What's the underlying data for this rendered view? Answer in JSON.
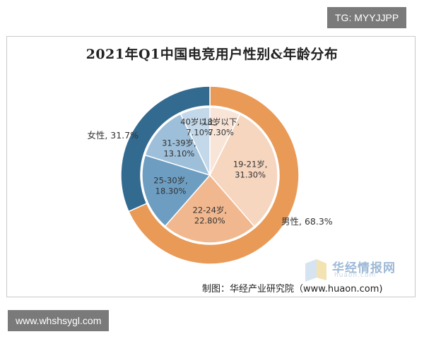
{
  "chart_data": {
    "type": "pie",
    "title": "2021年Q1中国电竞用户性别&年龄分布",
    "outer_ring": {
      "slices": [
        {
          "label": "女性",
          "value": 31.7,
          "text": "女性, 31.7%",
          "color": "#336a90"
        },
        {
          "label": "男性",
          "value": 68.3,
          "text": "男性, 68.3%",
          "color": "#e99a57"
        }
      ]
    },
    "inner_pie": {
      "slices": [
        {
          "label": "18岁以下",
          "value": 7.3,
          "text_label": "18岁以下,",
          "text_value": "7.30%",
          "color": "#f9e5d7"
        },
        {
          "label": "19-21岁",
          "value": 31.3,
          "text_label": "19-21岁,",
          "text_value": "31.30%",
          "color": "#f6d6bf"
        },
        {
          "label": "22-24岁",
          "value": 22.8,
          "text_label": "22-24岁,",
          "text_value": "22.80%",
          "color": "#f1b88f"
        },
        {
          "label": "25-30岁",
          "value": 18.3,
          "text_label": "25-30岁,",
          "text_value": "18.30%",
          "color": "#6d9ec2"
        },
        {
          "label": "31-39岁",
          "value": 13.1,
          "text_label": "31-39岁,",
          "text_value": "13.10%",
          "color": "#9dbfd9"
        },
        {
          "label": "40岁以上",
          "value": 7.1,
          "text_label": "40岁以上,",
          "text_value": "7.10%",
          "color": "#c3d8e9"
        }
      ]
    }
  },
  "credit": "制图：华经产业研究院（www.huaon.com)",
  "watermark": {
    "brand": "华经情报网",
    "sub": "huaon.com"
  },
  "tags": {
    "top_right": "TG: MYYJJPP",
    "bottom_left": "www.whshsygl.com"
  }
}
